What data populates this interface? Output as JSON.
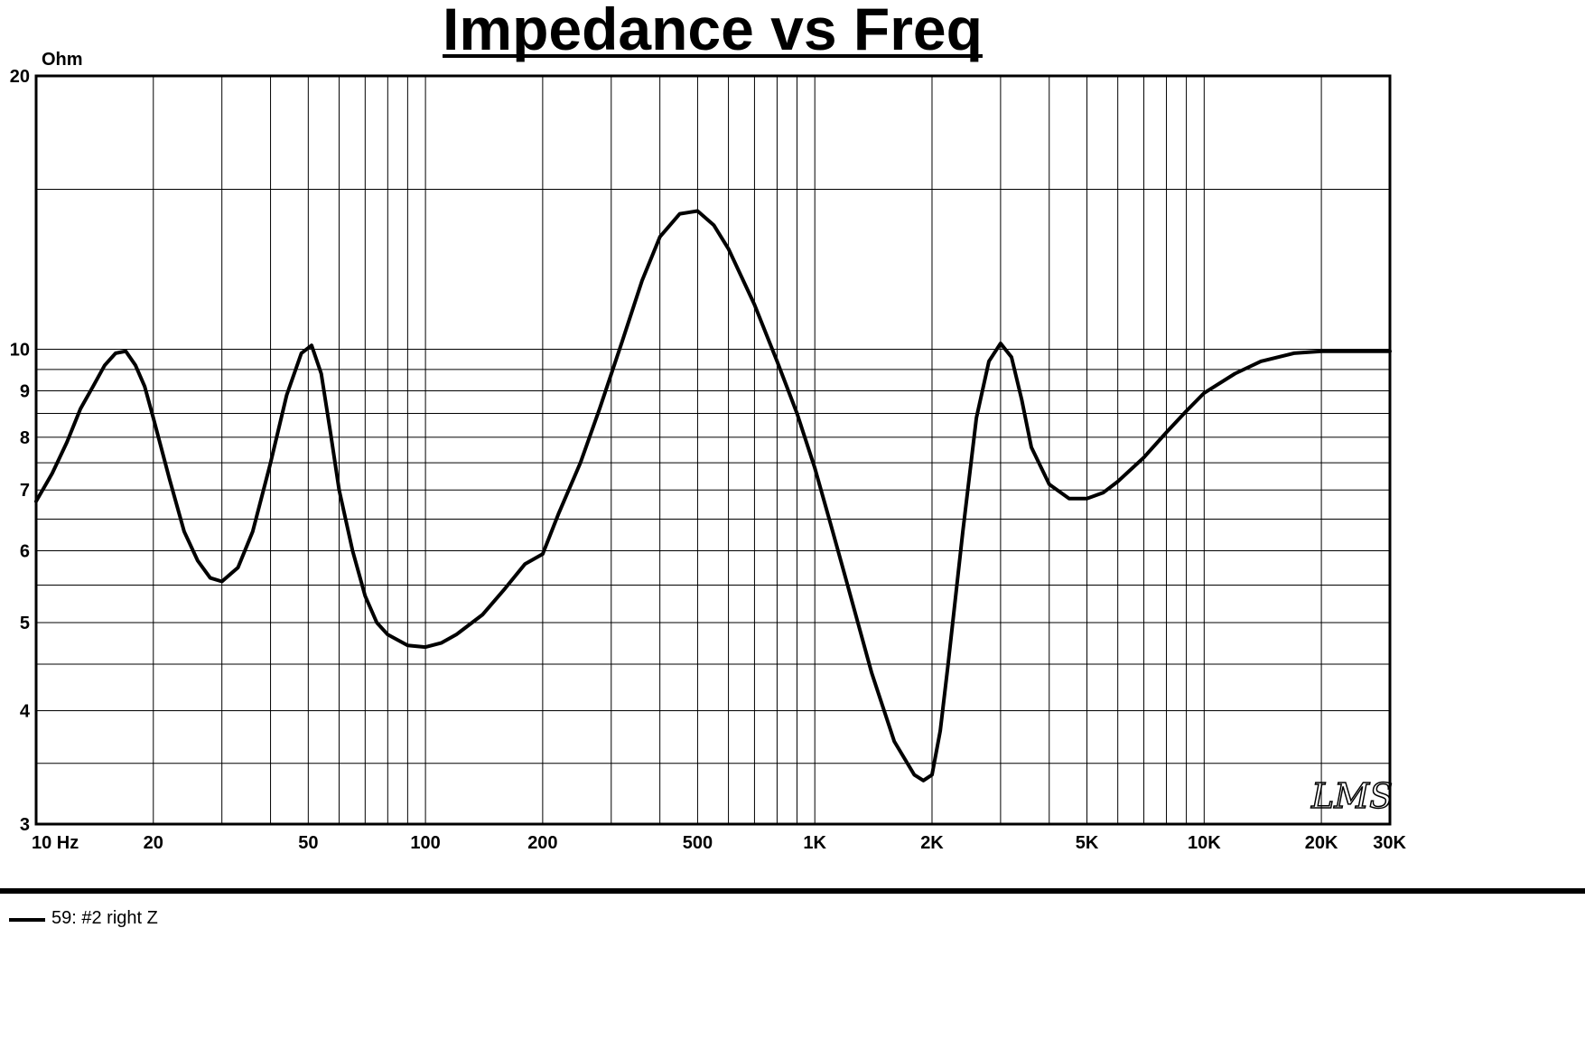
{
  "chart_data": {
    "type": "line",
    "title": "Impedance vs Freq",
    "ylabel": "Ohm",
    "xlabel": "",
    "x_scale": "log",
    "y_scale": "log",
    "xlim": [
      10,
      30000
    ],
    "ylim": [
      3,
      20
    ],
    "grid": true,
    "x_ticks": [
      {
        "value": 10,
        "label": "10  Hz"
      },
      {
        "value": 20,
        "label": "20"
      },
      {
        "value": 50,
        "label": "50"
      },
      {
        "value": 100,
        "label": "100"
      },
      {
        "value": 200,
        "label": "200"
      },
      {
        "value": 500,
        "label": "500"
      },
      {
        "value": 1000,
        "label": "1K"
      },
      {
        "value": 2000,
        "label": "2K"
      },
      {
        "value": 5000,
        "label": "5K"
      },
      {
        "value": 10000,
        "label": "10K"
      },
      {
        "value": 20000,
        "label": "20K"
      },
      {
        "value": 30000,
        "label": "30K"
      }
    ],
    "y_ticks": [
      {
        "value": 3,
        "label": "3"
      },
      {
        "value": 4,
        "label": "4"
      },
      {
        "value": 5,
        "label": "5"
      },
      {
        "value": 6,
        "label": "6"
      },
      {
        "value": 7,
        "label": "7"
      },
      {
        "value": 8,
        "label": "8"
      },
      {
        "value": 9,
        "label": "9"
      },
      {
        "value": 10,
        "label": "10"
      },
      {
        "value": 20,
        "label": "20"
      }
    ],
    "watermark": "LMS",
    "legend": {
      "placement": "bottom-left",
      "label": "59: #2 right Z"
    },
    "series": [
      {
        "name": "59: #2 right Z",
        "color": "#000000",
        "x": [
          10,
          11,
          12,
          13,
          14,
          15,
          16,
          17,
          18,
          19,
          20,
          22,
          24,
          26,
          28,
          30,
          33,
          36,
          40,
          44,
          48,
          51,
          54,
          57,
          60,
          65,
          70,
          75,
          80,
          90,
          100,
          110,
          120,
          140,
          160,
          180,
          200,
          220,
          250,
          280,
          320,
          360,
          400,
          450,
          500,
          550,
          600,
          700,
          800,
          900,
          1000,
          1100,
          1200,
          1400,
          1600,
          1800,
          1900,
          2000,
          2100,
          2200,
          2400,
          2600,
          2800,
          3000,
          3200,
          3400,
          3600,
          4000,
          4500,
          5000,
          5500,
          6000,
          7000,
          8000,
          9000,
          10000,
          12000,
          14000,
          17000,
          20000,
          25000,
          30000
        ],
        "y": [
          6.8,
          7.3,
          7.9,
          8.6,
          9.1,
          9.6,
          9.9,
          9.95,
          9.6,
          9.1,
          8.4,
          7.2,
          6.3,
          5.85,
          5.6,
          5.55,
          5.75,
          6.3,
          7.5,
          8.9,
          9.9,
          10.1,
          9.4,
          8.1,
          7.0,
          6.0,
          5.35,
          5.0,
          4.85,
          4.72,
          4.7,
          4.75,
          4.85,
          5.1,
          5.45,
          5.8,
          5.95,
          6.6,
          7.5,
          8.6,
          10.2,
          11.9,
          13.3,
          14.1,
          14.2,
          13.7,
          12.9,
          11.2,
          9.7,
          8.5,
          7.4,
          6.4,
          5.6,
          4.4,
          3.7,
          3.4,
          3.35,
          3.4,
          3.8,
          4.5,
          6.3,
          8.4,
          9.7,
          10.15,
          9.8,
          8.8,
          7.8,
          7.1,
          6.85,
          6.85,
          6.95,
          7.15,
          7.6,
          8.1,
          8.55,
          8.95,
          9.4,
          9.7,
          9.9,
          9.95,
          9.95,
          9.95
        ]
      }
    ]
  }
}
